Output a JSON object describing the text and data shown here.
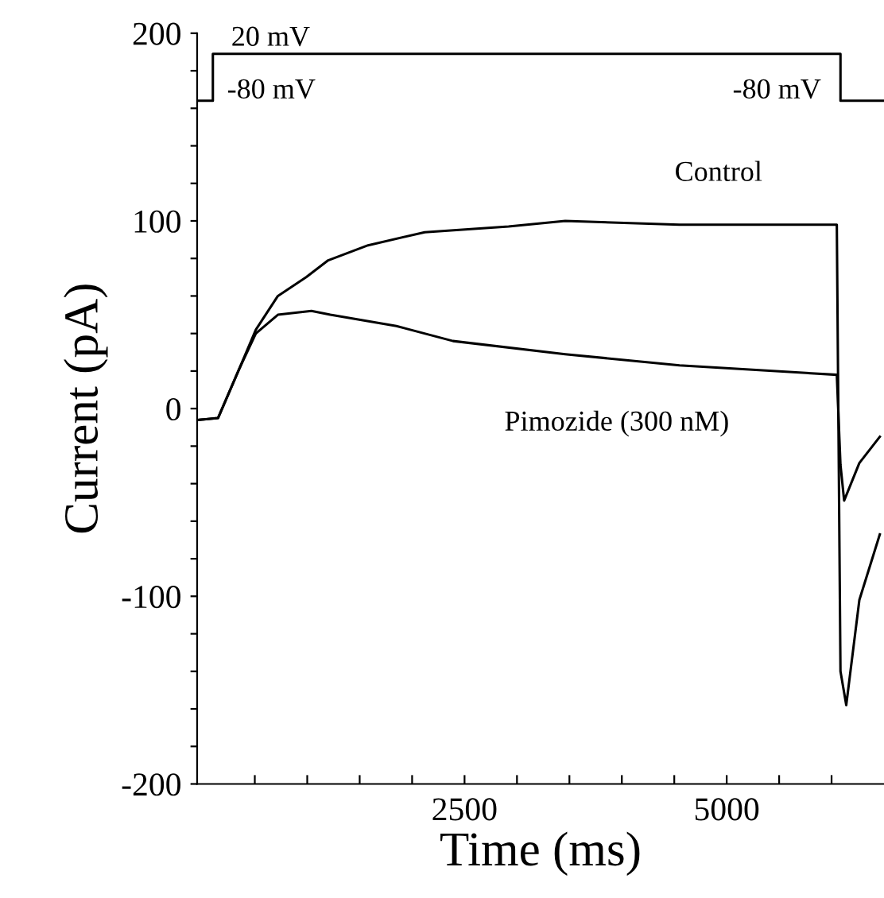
{
  "chart_data": {
    "type": "line",
    "xlabel": "Time (ms)",
    "ylabel": "Current (pA)",
    "xlim": [
      -50,
      6500
    ],
    "ylim": [
      -200,
      200
    ],
    "xticks": [
      {
        "value": 500,
        "label": null
      },
      {
        "value": 1000,
        "label": null
      },
      {
        "value": 1500,
        "label": null
      },
      {
        "value": 2000,
        "label": null
      },
      2500,
      {
        "value": 3000,
        "label": null
      },
      {
        "value": 3500,
        "label": null
      },
      {
        "value": 4000,
        "label": null
      },
      {
        "value": 4500,
        "label": null
      },
      5000,
      {
        "value": 5500,
        "label": null
      },
      {
        "value": 6000,
        "label": null
      }
    ],
    "yticks": [
      -200,
      {
        "value": -180,
        "label": null
      },
      {
        "value": -160,
        "label": null
      },
      {
        "value": -140,
        "label": null
      },
      {
        "value": -120,
        "label": null
      },
      -100,
      {
        "value": -80,
        "label": null
      },
      {
        "value": -60,
        "label": null
      },
      {
        "value": -40,
        "label": null
      },
      {
        "value": -20,
        "label": null
      },
      0,
      {
        "value": 20,
        "label": null
      },
      {
        "value": 40,
        "label": null
      },
      {
        "value": 60,
        "label": null
      },
      {
        "value": 80,
        "label": null
      },
      100,
      {
        "value": 120,
        "label": null
      },
      {
        "value": 140,
        "label": null
      },
      {
        "value": 160,
        "label": null
      },
      {
        "value": 180,
        "label": null
      },
      200
    ],
    "grid": false,
    "legend": false,
    "marker": "none",
    "line_style": "solid",
    "series": [
      {
        "name": "Control",
        "color": "#000000",
        "x": [
          -30,
          150,
          350,
          510,
          720,
          990,
          1200,
          1580,
          2120,
          2920,
          3460,
          4550,
          6050,
          6085,
          6140,
          6265,
          6460
        ],
        "values": [
          -6,
          -5,
          21,
          42,
          60,
          70,
          79,
          87,
          94,
          97,
          100,
          98,
          98,
          -140,
          -158,
          -102,
          -67
        ]
      },
      {
        "name": "Pimozide (300 nM)",
        "color": "#000000",
        "x": [
          -30,
          150,
          350,
          510,
          720,
          1040,
          1220,
          1850,
          2390,
          3460,
          4550,
          6050,
          6085,
          6120,
          6265,
          6460
        ],
        "values": [
          -6,
          -5,
          21,
          40,
          50,
          52,
          50,
          44,
          36,
          29,
          23,
          18,
          -30,
          -49,
          -29,
          -15
        ]
      },
      {
        "color": "#000000",
        "x": [
          -50,
          100,
          100,
          6085,
          6085,
          6500
        ],
        "values": [
          164,
          164,
          189,
          189,
          164,
          164
        ]
      }
    ],
    "annotations": [
      "20 mV",
      "-80 mV",
      "-80 mV"
    ]
  }
}
